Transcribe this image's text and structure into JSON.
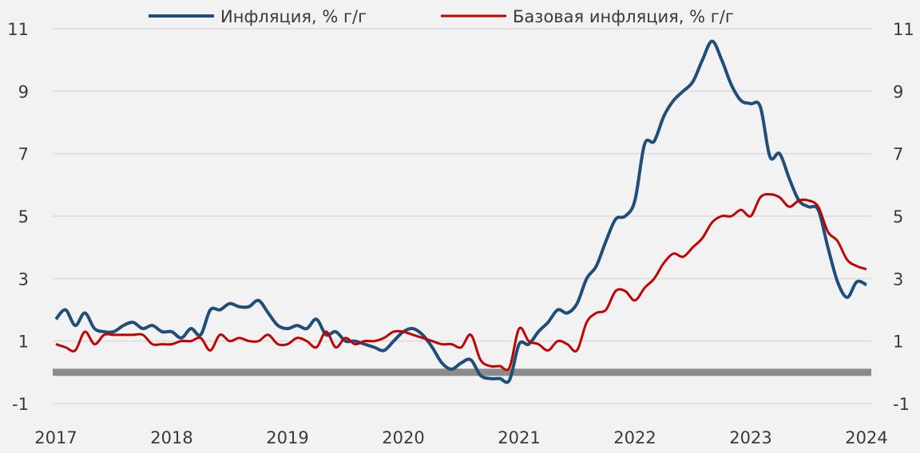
{
  "chart_data": {
    "type": "line",
    "title": "",
    "xlabel": "",
    "ylabel": "",
    "ylim": [
      -1,
      11
    ],
    "yticks": [
      "-1",
      "1",
      "3",
      "5",
      "7",
      "9",
      "11"
    ],
    "xticks": [
      "2017",
      "2018",
      "2019",
      "2020",
      "2021",
      "2022",
      "2023",
      "2024"
    ],
    "xlim": [
      "2017-01",
      "2024-01"
    ],
    "grid": "horizontal",
    "legend_position": "top-center",
    "zero_line_color": "#8c8c8c",
    "x": [
      "2017-01",
      "2017-02",
      "2017-03",
      "2017-04",
      "2017-05",
      "2017-06",
      "2017-07",
      "2017-08",
      "2017-09",
      "2017-10",
      "2017-11",
      "2017-12",
      "2018-01",
      "2018-02",
      "2018-03",
      "2018-04",
      "2018-05",
      "2018-06",
      "2018-07",
      "2018-08",
      "2018-09",
      "2018-10",
      "2018-11",
      "2018-12",
      "2019-01",
      "2019-02",
      "2019-03",
      "2019-04",
      "2019-05",
      "2019-06",
      "2019-07",
      "2019-08",
      "2019-09",
      "2019-10",
      "2019-11",
      "2019-12",
      "2020-01",
      "2020-02",
      "2020-03",
      "2020-04",
      "2020-05",
      "2020-06",
      "2020-07",
      "2020-08",
      "2020-09",
      "2020-10",
      "2020-11",
      "2020-12",
      "2021-01",
      "2021-02",
      "2021-03",
      "2021-04",
      "2021-05",
      "2021-06",
      "2021-07",
      "2021-08",
      "2021-09",
      "2021-10",
      "2021-11",
      "2021-12",
      "2022-01",
      "2022-02",
      "2022-03",
      "2022-04",
      "2022-05",
      "2022-06",
      "2022-07",
      "2022-08",
      "2022-09",
      "2022-10",
      "2022-11",
      "2022-12",
      "2023-01",
      "2023-02",
      "2023-03",
      "2023-04",
      "2023-05",
      "2023-06",
      "2023-07",
      "2023-08",
      "2023-09",
      "2023-10",
      "2023-11",
      "2023-12",
      "2024-01"
    ],
    "series": [
      {
        "name": "Инфляция, % г/г",
        "color": "#1f4e79",
        "values": [
          1.7,
          2.0,
          1.5,
          1.9,
          1.4,
          1.3,
          1.3,
          1.5,
          1.6,
          1.4,
          1.5,
          1.3,
          1.3,
          1.1,
          1.4,
          1.2,
          2.0,
          2.0,
          2.2,
          2.1,
          2.1,
          2.3,
          1.9,
          1.5,
          1.4,
          1.5,
          1.4,
          1.7,
          1.2,
          1.3,
          1.0,
          1.0,
          0.9,
          0.8,
          0.7,
          1.0,
          1.3,
          1.4,
          1.2,
          0.8,
          0.3,
          0.1,
          0.3,
          0.4,
          -0.1,
          -0.2,
          -0.2,
          -0.25,
          0.9,
          0.9,
          1.3,
          1.6,
          2.0,
          1.9,
          2.2,
          3.0,
          3.4,
          4.2,
          4.9,
          5.0,
          5.5,
          7.3,
          7.4,
          8.2,
          8.7,
          9.0,
          9.3,
          10.0,
          10.6,
          10.0,
          9.2,
          8.7,
          8.6,
          8.5,
          6.9,
          7.0,
          6.2,
          5.5,
          5.3,
          5.2,
          4.0,
          2.9,
          2.4,
          2.9,
          2.8
        ]
      },
      {
        "name": "Базовая инфляция, % г/г",
        "color": "#c00000",
        "values": [
          0.9,
          0.8,
          0.7,
          1.3,
          0.9,
          1.2,
          1.2,
          1.2,
          1.2,
          1.2,
          0.9,
          0.9,
          0.9,
          1.0,
          1.0,
          1.1,
          0.7,
          1.2,
          1.0,
          1.1,
          1.0,
          1.0,
          1.2,
          0.9,
          0.9,
          1.1,
          1.0,
          0.8,
          1.3,
          0.8,
          1.1,
          0.9,
          1.0,
          1.0,
          1.1,
          1.3,
          1.3,
          1.2,
          1.1,
          1.0,
          0.9,
          0.9,
          0.8,
          1.2,
          0.4,
          0.2,
          0.2,
          0.15,
          1.4,
          1.0,
          0.9,
          0.7,
          1.0,
          0.9,
          0.7,
          1.6,
          1.9,
          2.0,
          2.6,
          2.6,
          2.3,
          2.7,
          3.0,
          3.5,
          3.8,
          3.7,
          4.0,
          4.3,
          4.8,
          5.0,
          5.0,
          5.2,
          5.0,
          5.6,
          5.7,
          5.6,
          5.3,
          5.5,
          5.5,
          5.3,
          4.5,
          4.2,
          3.6,
          3.4,
          3.3
        ]
      }
    ]
  }
}
